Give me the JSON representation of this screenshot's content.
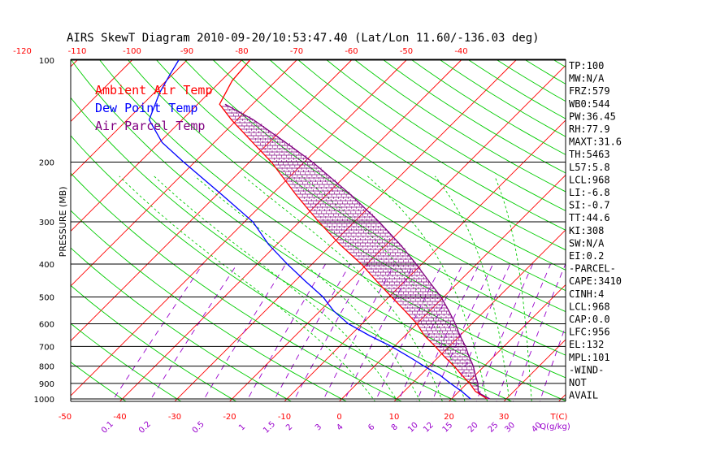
{
  "chart_data": {
    "type": "line",
    "title": "AIRS SkewT Diagram 2010-09-20/10:53:47.40 (Lat/Lon 11.60/-136.03 deg)",
    "ylabel": "PRESSURE (MB)",
    "y_scale": "log",
    "ylim": [
      1050,
      100
    ],
    "pressure_ticks": [
      100,
      200,
      300,
      400,
      500,
      600,
      700,
      800,
      900,
      1000
    ],
    "top_temp_ticks": [
      -120,
      -110,
      -100,
      -90,
      -80,
      -70,
      -60,
      -50,
      -40
    ],
    "bottom_temp_ticks": [
      -50,
      -40,
      -30,
      -20,
      -10,
      0,
      10,
      20,
      30
    ],
    "bottom_temp_unit": "T(C)",
    "mixing_ratio_labels": [
      "0.1",
      "0.2",
      "0.5",
      "1",
      "1.5",
      "2",
      "3",
      "4",
      "6",
      "8",
      "10",
      "12",
      "15",
      "20",
      "25",
      "30",
      "40"
    ],
    "mixing_ratio_unit": "Q(g/kg)",
    "legend": [
      {
        "name": "Ambient Air Temp",
        "color": "#ff0000"
      },
      {
        "name": "Dew Point Temp",
        "color": "#0000ff"
      },
      {
        "name": "Air Parcel Temp",
        "color": "#800080"
      }
    ],
    "series": [
      {
        "name": "Ambient Air Temp",
        "color": "#ff0000",
        "points": [
          [
            1000,
            26.5
          ],
          [
            950,
            23.0
          ],
          [
            900,
            20.5
          ],
          [
            850,
            17.5
          ],
          [
            800,
            14.5
          ],
          [
            750,
            11.0
          ],
          [
            700,
            7.5
          ],
          [
            650,
            3.5
          ],
          [
            600,
            0.0
          ],
          [
            550,
            -4.5
          ],
          [
            500,
            -9.5
          ],
          [
            450,
            -15.0
          ],
          [
            400,
            -21.0
          ],
          [
            350,
            -28.5
          ],
          [
            300,
            -36.5
          ],
          [
            250,
            -45.5
          ],
          [
            200,
            -56.0
          ],
          [
            175,
            -63.0
          ],
          [
            150,
            -71.0
          ],
          [
            135,
            -76.0
          ],
          [
            115,
            -78.0
          ],
          [
            100,
            -78.5
          ]
        ]
      },
      {
        "name": "Dew Point Temp",
        "color": "#0000ff",
        "points": [
          [
            1000,
            23.5
          ],
          [
            950,
            20.5
          ],
          [
            900,
            17.0
          ],
          [
            850,
            13.5
          ],
          [
            800,
            9.0
          ],
          [
            750,
            4.5
          ],
          [
            700,
            -0.5
          ],
          [
            650,
            -6.5
          ],
          [
            600,
            -12.5
          ],
          [
            550,
            -17.5
          ],
          [
            500,
            -22.0
          ],
          [
            450,
            -28.0
          ],
          [
            400,
            -34.5
          ],
          [
            350,
            -41.5
          ],
          [
            300,
            -48.5
          ],
          [
            250,
            -59.0
          ],
          [
            200,
            -72.0
          ],
          [
            175,
            -79.5
          ],
          [
            150,
            -86.0
          ],
          [
            125,
            -89.0
          ],
          [
            110,
            -90.5
          ],
          [
            100,
            -91.5
          ]
        ]
      },
      {
        "name": "Air Parcel Temp",
        "color": "#800080",
        "points": [
          [
            1000,
            27.0
          ],
          [
            968,
            24.5
          ],
          [
            950,
            23.5
          ],
          [
            900,
            22.0
          ],
          [
            850,
            20.0
          ],
          [
            800,
            18.0
          ],
          [
            750,
            15.5
          ],
          [
            700,
            13.0
          ],
          [
            650,
            10.0
          ],
          [
            600,
            7.0
          ],
          [
            550,
            3.5
          ],
          [
            500,
            -0.5
          ],
          [
            450,
            -5.5
          ],
          [
            400,
            -11.0
          ],
          [
            350,
            -17.5
          ],
          [
            300,
            -25.5
          ],
          [
            250,
            -35.5
          ],
          [
            200,
            -48.5
          ],
          [
            175,
            -57.0
          ],
          [
            150,
            -67.0
          ],
          [
            135,
            -75.0
          ]
        ]
      }
    ],
    "indices": [
      "TP:100",
      "MW:N/A",
      "FRZ:579",
      "WB0:544",
      "PW:36.45",
      "RH:77.9",
      "MAXT:31.6",
      "TH:5463",
      "L57:5.8",
      "LCL:968",
      "LI:-6.8",
      "SI:-0.7",
      "TT:44.6",
      "KI:308",
      "SW:N/A",
      "EI:0.2",
      "-PARCEL-",
      "CAPE:3410",
      "CINH:4",
      "LCL:968",
      "CAP:0.0",
      "LFC:956",
      "EL:132",
      "MPL:101",
      "-WIND-",
      "NOT",
      "AVAIL"
    ],
    "colors": {
      "isotherm": "#ff0000",
      "dry_adiabat": "#00cc00",
      "moist_adiabat": "#00cc00",
      "mixing_ratio": "#9900cc",
      "isobar": "#000000"
    }
  }
}
